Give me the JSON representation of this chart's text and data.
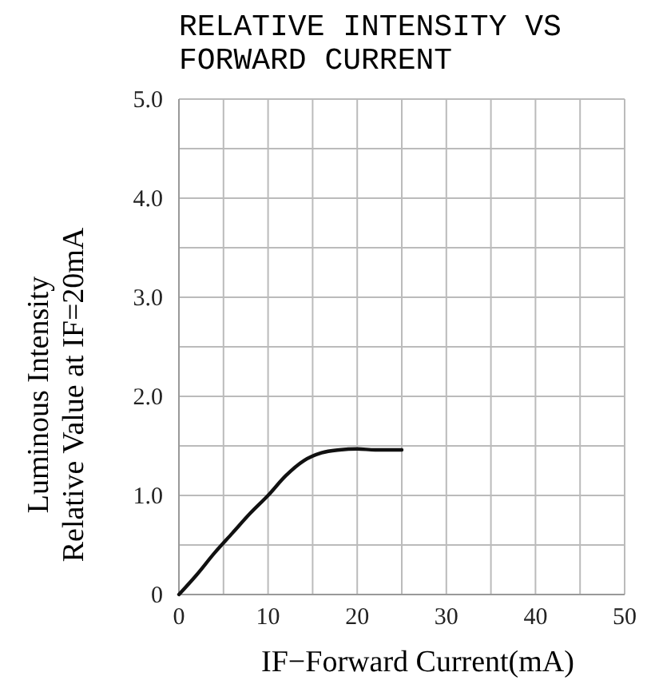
{
  "chart_data": {
    "type": "line",
    "title": "RELATIVE INTENSITY VS\nFORWARD CURRENT",
    "xlabel": "IF−Forward   Current(mA)",
    "ylabel": "Luminous Intensity\nRelative Value at IF=20mA",
    "x": [
      0,
      2,
      4,
      6,
      8,
      10,
      12,
      14,
      16,
      18,
      20,
      22,
      25
    ],
    "series": [
      {
        "color": "#111111",
        "values": [
          0,
          0.2,
          0.42,
          0.62,
          0.82,
          1.0,
          1.2,
          1.35,
          1.43,
          1.46,
          1.47,
          1.46,
          1.46
        ]
      }
    ],
    "xlim": [
      0,
      50
    ],
    "ylim": [
      0,
      5
    ],
    "xticks": [
      0,
      {
        "value": 5,
        "label": null
      },
      10,
      {
        "value": 15,
        "label": null
      },
      20,
      {
        "value": 25,
        "label": null
      },
      30,
      {
        "value": 35,
        "label": null
      },
      40,
      {
        "value": 45,
        "label": null
      },
      50
    ],
    "yticks": [
      0,
      {
        "value": 0.5,
        "label": null
      },
      {
        "value": 1,
        "label": "1.0"
      },
      {
        "value": 1.5,
        "label": null
      },
      {
        "value": 2,
        "label": "2.0"
      },
      {
        "value": 2.5,
        "label": null
      },
      {
        "value": 3,
        "label": "3.0"
      },
      {
        "value": 3.5,
        "label": null
      },
      {
        "value": 4,
        "label": "4.0"
      },
      {
        "value": 4.5,
        "label": null
      },
      {
        "value": 5,
        "label": "5.0"
      }
    ],
    "grid": true,
    "marker": "none",
    "line_style": "solid"
  }
}
